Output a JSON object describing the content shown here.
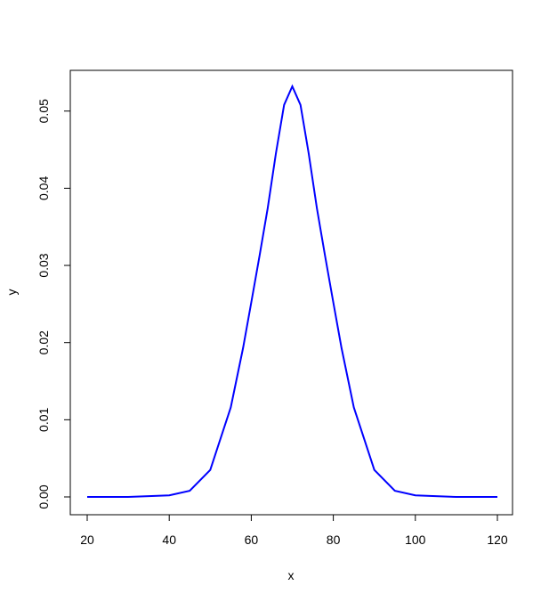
{
  "chart_data": {
    "type": "line",
    "title": "",
    "xlabel": "x",
    "ylabel": "y",
    "xlim": [
      20,
      120
    ],
    "ylim": [
      0,
      0.0532
    ],
    "xticks": [
      20,
      40,
      60,
      80,
      100,
      120
    ],
    "yticks": [
      0.0,
      0.01,
      0.02,
      0.03,
      0.04,
      0.05
    ],
    "xtick_labels": [
      "20",
      "40",
      "60",
      "80",
      "100",
      "120"
    ],
    "ytick_labels": [
      "0.00",
      "0.01",
      "0.02",
      "0.03",
      "0.04",
      "0.05"
    ],
    "grid": false,
    "legend": "none",
    "series": [
      {
        "color": "#0000ff",
        "x": [
          20,
          30,
          40,
          45,
          50,
          55,
          58,
          60,
          62,
          64,
          66,
          68,
          70,
          72,
          74,
          76,
          78,
          80,
          82,
          85,
          90,
          95,
          100,
          110,
          120
        ],
        "y": [
          0.0,
          0.0,
          0.0002,
          0.0008,
          0.0035,
          0.0116,
          0.0193,
          0.0252,
          0.0312,
          0.0374,
          0.0445,
          0.0508,
          0.0532,
          0.0508,
          0.0445,
          0.0374,
          0.0312,
          0.0252,
          0.0193,
          0.0116,
          0.0035,
          0.0008,
          0.0002,
          0.0,
          0.0
        ]
      }
    ]
  }
}
